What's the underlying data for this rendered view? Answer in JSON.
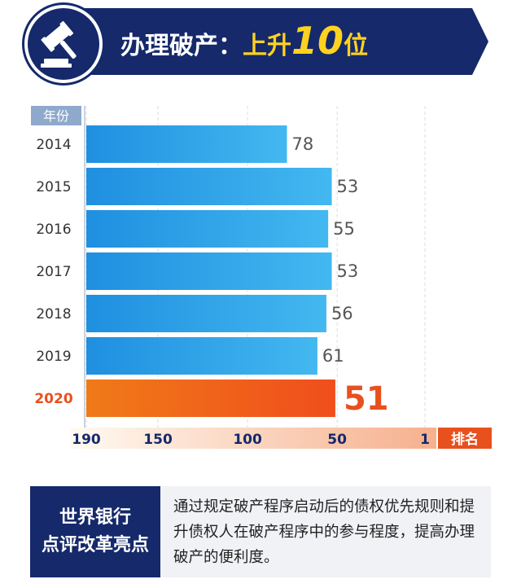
{
  "header": {
    "title_prefix": "办理破产：",
    "title_rise": "上升",
    "title_number": "10",
    "title_suffix": "位",
    "icon": "gavel-icon"
  },
  "chart_data": {
    "type": "bar",
    "orientation": "horizontal",
    "year_header": "年份",
    "categories": [
      "2014",
      "2015",
      "2016",
      "2017",
      "2018",
      "2019",
      "2020"
    ],
    "values": [
      78,
      53,
      55,
      53,
      56,
      61,
      51
    ],
    "highlight_index": 6,
    "xlabel": "排名",
    "x_ticks": [
      "190",
      "150",
      "100",
      "50",
      "1"
    ],
    "x_tick_values": [
      190,
      150,
      100,
      50,
      1
    ],
    "xlim": [
      190,
      1
    ],
    "colors": {
      "bar": "#2ea3e8",
      "bar_highlight": "#f06a1c",
      "label": "#555555",
      "label_highlight": "#e8501e",
      "axis_badge": "#e8501e"
    }
  },
  "footer": {
    "left_line1": "世界银行",
    "left_line2": "点评改革亮点",
    "right_text": "通过规定破产程序启动后的债权优先规则和提升债权人在破产程序中的参与程度，提高办理破产的便利度。"
  },
  "colors": {
    "navy": "#15296b",
    "gold": "#ffd21f"
  }
}
